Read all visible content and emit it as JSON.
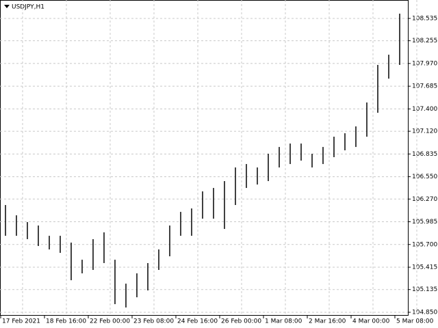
{
  "chart_data": {
    "type": "range_bar",
    "title": "USDJPY,H1",
    "categories": [
      "17 Feb 2021",
      null,
      null,
      null,
      "18 Feb 16:00",
      null,
      null,
      null,
      "22 Feb 00:00",
      null,
      null,
      null,
      "23 Feb 08:00",
      null,
      null,
      null,
      "24 Feb 16:00",
      null,
      null,
      null,
      "26 Feb 00:00",
      null,
      null,
      null,
      "1 Mar 08:00",
      null,
      null,
      null,
      "2 Mar 16:00",
      null,
      null,
      null,
      "4 Mar 00:00",
      null,
      null,
      null,
      "5 Mar 08:00"
    ],
    "high": [
      106.195,
      106.066,
      105.981,
      105.938,
      105.809,
      105.809,
      105.724,
      105.509,
      105.767,
      105.852,
      105.509,
      105.209,
      105.338,
      105.467,
      105.638,
      105.938,
      106.109,
      106.152,
      106.366,
      106.409,
      106.495,
      106.666,
      106.709,
      106.666,
      106.838,
      106.923,
      106.966,
      106.966,
      106.838,
      106.923,
      107.052,
      107.095,
      107.181,
      107.481,
      107.952,
      108.08,
      108.595
    ],
    "low": [
      105.809,
      105.809,
      105.767,
      105.681,
      105.638,
      105.595,
      105.252,
      105.338,
      105.381,
      105.467,
      104.952,
      104.91,
      105.038,
      105.124,
      105.381,
      105.552,
      105.809,
      105.809,
      106.024,
      106.024,
      105.895,
      106.195,
      106.409,
      106.452,
      106.495,
      106.666,
      106.709,
      106.752,
      106.666,
      106.709,
      106.795,
      106.881,
      106.923,
      107.052,
      107.352,
      107.78,
      107.952
    ],
    "color": "#000000",
    "ylim": [
      104.807,
      108.766
    ],
    "yticks": [
      {
        "value": 104.85,
        "label": "104.850"
      },
      {
        "value": 105.135,
        "label": "105.135"
      },
      {
        "value": 105.415,
        "label": "105.415"
      },
      {
        "value": 105.7,
        "label": "105.700"
      },
      {
        "value": 105.985,
        "label": "105.985"
      },
      {
        "value": 106.27,
        "label": "106.270"
      },
      {
        "value": 106.55,
        "label": "106.550"
      },
      {
        "value": 106.835,
        "label": "106.835"
      },
      {
        "value": 107.12,
        "label": "107.120"
      },
      {
        "value": 107.4,
        "label": "107.400"
      },
      {
        "value": 107.685,
        "label": "107.685"
      },
      {
        "value": 107.97,
        "label": "107.970"
      },
      {
        "value": 108.255,
        "label": "108.255"
      },
      {
        "value": 108.535,
        "label": "108.535"
      }
    ],
    "grid": true
  }
}
